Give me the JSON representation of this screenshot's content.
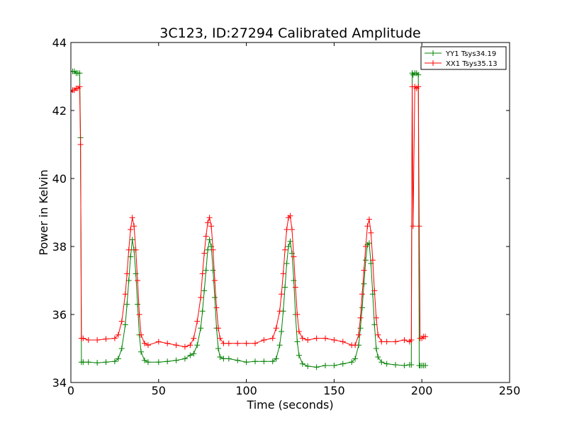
{
  "chart_data": {
    "type": "line",
    "title": "3C123, ID:27294 Calibrated Amplitude",
    "xlabel": "Time (seconds)",
    "ylabel": "Power in Kelvin",
    "xlim": [
      0,
      250
    ],
    "ylim": [
      34,
      44
    ],
    "xticks": [
      0,
      50,
      100,
      150,
      200,
      250
    ],
    "yticks": [
      34,
      36,
      38,
      40,
      42,
      44
    ],
    "grid": false,
    "legend_position": "top-right",
    "marker": "plus",
    "series": [
      {
        "name": "YY1 Tsys34.19",
        "color": "#008000",
        "x": [
          0,
          1,
          2,
          3,
          4,
          5,
          5.5,
          6,
          7,
          10,
          15,
          20,
          25,
          27,
          29,
          31,
          32,
          33,
          34,
          35,
          36,
          37,
          38,
          39,
          40,
          42,
          44,
          50,
          55,
          60,
          65,
          68,
          70,
          72,
          74,
          75,
          76,
          77,
          78,
          79,
          80,
          81,
          82,
          83,
          84,
          85,
          87,
          90,
          95,
          100,
          105,
          110,
          115,
          117,
          119,
          120,
          121,
          122,
          123,
          124,
          125,
          126,
          127,
          128,
          129,
          130,
          132,
          135,
          140,
          145,
          150,
          155,
          160,
          162,
          164,
          165,
          166,
          167,
          168,
          169,
          170,
          171,
          172,
          173,
          174,
          175,
          177,
          180,
          185,
          190,
          193,
          194,
          194.5,
          195,
          196,
          197,
          198,
          198.5,
          199,
          200,
          201,
          202
        ],
        "values": [
          43.15,
          43.15,
          43.15,
          43.1,
          43.1,
          43.1,
          41.2,
          34.6,
          34.6,
          34.6,
          34.58,
          34.6,
          34.62,
          34.7,
          35.0,
          35.7,
          36.3,
          37.0,
          37.7,
          38.2,
          37.9,
          37.2,
          36.3,
          35.4,
          34.9,
          34.65,
          34.6,
          34.6,
          34.62,
          34.65,
          34.7,
          34.8,
          34.85,
          35.1,
          35.6,
          36.1,
          36.7,
          37.3,
          37.9,
          38.2,
          38.0,
          37.3,
          36.5,
          35.6,
          35.0,
          34.75,
          34.7,
          34.7,
          34.65,
          34.6,
          34.62,
          34.62,
          34.62,
          34.7,
          35.1,
          35.5,
          36.1,
          36.8,
          37.5,
          38.0,
          38.15,
          37.8,
          37.0,
          36.0,
          35.2,
          34.8,
          34.55,
          34.48,
          34.45,
          34.5,
          34.5,
          34.55,
          34.6,
          34.7,
          35.1,
          35.6,
          36.2,
          36.9,
          37.6,
          38.05,
          38.1,
          37.5,
          36.6,
          35.7,
          35.0,
          34.75,
          34.6,
          34.55,
          34.52,
          34.5,
          34.52,
          34.52,
          43.1,
          43.05,
          43.1,
          43.1,
          43.05,
          34.5,
          34.5,
          34.5,
          34.5,
          34.5
        ]
      },
      {
        "name": "XX1 Tsys35.13",
        "color": "#ff0000",
        "x": [
          0,
          1,
          2,
          3,
          4,
          5,
          5.5,
          6,
          7,
          10,
          15,
          20,
          25,
          27,
          29,
          31,
          32,
          33,
          34,
          35,
          36,
          37,
          38,
          39,
          40,
          42,
          44,
          50,
          55,
          60,
          65,
          68,
          70,
          72,
          74,
          75,
          76,
          77,
          78,
          79,
          80,
          81,
          82,
          83,
          84,
          85,
          87,
          90,
          95,
          100,
          105,
          110,
          115,
          117,
          119,
          120,
          121,
          122,
          123,
          124,
          125,
          126,
          127,
          128,
          129,
          130,
          132,
          135,
          140,
          145,
          150,
          155,
          160,
          162,
          164,
          165,
          166,
          167,
          168,
          169,
          170,
          171,
          172,
          173,
          174,
          175,
          177,
          180,
          185,
          190,
          193,
          194,
          194.5,
          195,
          196,
          197,
          198,
          198.5,
          199,
          200,
          201,
          202
        ],
        "values": [
          42.55,
          42.6,
          42.6,
          42.65,
          42.65,
          42.7,
          41.0,
          35.3,
          35.3,
          35.25,
          35.25,
          35.28,
          35.3,
          35.4,
          35.8,
          36.6,
          37.2,
          37.9,
          38.5,
          38.85,
          38.6,
          37.9,
          37.0,
          36.0,
          35.4,
          35.15,
          35.1,
          35.2,
          35.15,
          35.1,
          35.05,
          35.1,
          35.3,
          35.8,
          36.5,
          37.2,
          37.8,
          38.3,
          38.7,
          38.85,
          38.6,
          37.9,
          37.0,
          36.2,
          35.6,
          35.3,
          35.15,
          35.15,
          35.15,
          35.15,
          35.15,
          35.25,
          35.3,
          35.6,
          36.1,
          36.6,
          37.2,
          37.9,
          38.5,
          38.85,
          38.9,
          38.5,
          37.7,
          36.8,
          36.0,
          35.5,
          35.3,
          35.25,
          35.3,
          35.3,
          35.25,
          35.2,
          35.1,
          35.1,
          35.4,
          35.9,
          36.6,
          37.3,
          38.0,
          38.6,
          38.8,
          38.4,
          37.6,
          36.7,
          35.9,
          35.4,
          35.2,
          35.2,
          35.2,
          35.25,
          35.2,
          35.25,
          42.7,
          38.6,
          42.7,
          42.65,
          42.7,
          38.6,
          35.3,
          35.3,
          35.35,
          35.35
        ]
      }
    ]
  }
}
